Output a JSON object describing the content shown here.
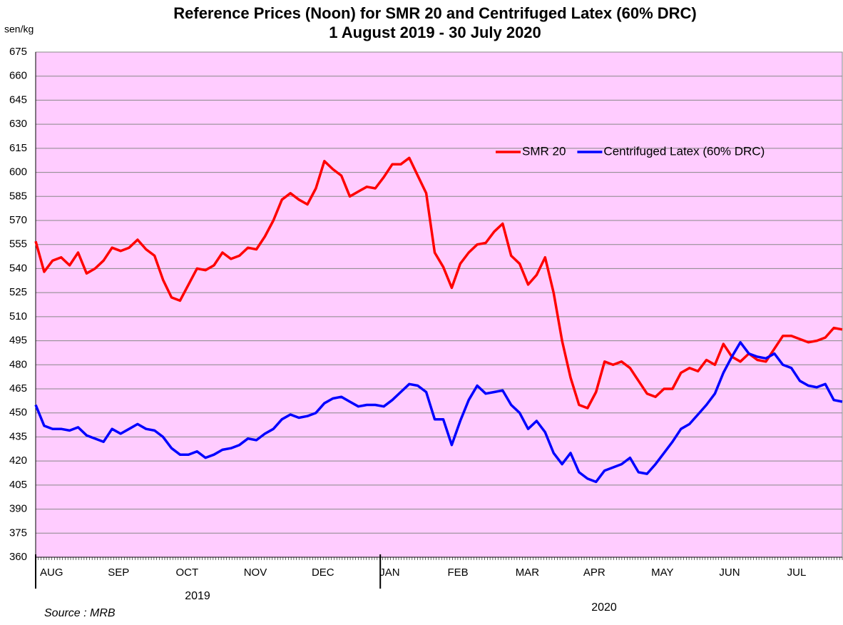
{
  "chart_data": {
    "type": "line",
    "title": "Reference Prices (Noon) for SMR 20 and Centrifuged Latex (60% DRC)",
    "subtitle": "1 August 2019 - 30 July 2020",
    "y_label": "sen/kg",
    "source": "Source : MRB",
    "year_labels": [
      "2019",
      "2020"
    ],
    "categories": [
      "AUG",
      null,
      null,
      null,
      null,
      null,
      null,
      null,
      "SEP",
      null,
      null,
      null,
      null,
      null,
      null,
      null,
      "OCT",
      null,
      null,
      null,
      null,
      null,
      null,
      null,
      "NOV",
      null,
      null,
      null,
      null,
      null,
      null,
      null,
      "DEC",
      null,
      null,
      null,
      null,
      null,
      null,
      null,
      "JAN",
      null,
      null,
      null,
      null,
      null,
      null,
      null,
      "FEB",
      null,
      null,
      null,
      null,
      null,
      null,
      null,
      "MAR",
      null,
      null,
      null,
      null,
      null,
      null,
      null,
      "APR",
      null,
      null,
      null,
      null,
      null,
      null,
      null,
      "MAY",
      null,
      null,
      null,
      null,
      null,
      null,
      null,
      "JUN",
      null,
      null,
      null,
      null,
      null,
      null,
      null,
      "JUL",
      null,
      null,
      null,
      null,
      null,
      null,
      null
    ],
    "series": [
      {
        "name": "SMR 20",
        "color": "#ff0000",
        "values": [
          557,
          538,
          545,
          547,
          542,
          550,
          537,
          540,
          545,
          553,
          551,
          553,
          558,
          552,
          548,
          533,
          522,
          520,
          530,
          540,
          539,
          542,
          550,
          546,
          548,
          553,
          552,
          560,
          570,
          583,
          587,
          583,
          580,
          590,
          607,
          602,
          598,
          585,
          588,
          591,
          590,
          597,
          605,
          605,
          609,
          598,
          587,
          550,
          541,
          528,
          543,
          550,
          555,
          556,
          563,
          568,
          548,
          543,
          530,
          536,
          547,
          525,
          495,
          472,
          455,
          453,
          463,
          482,
          480,
          482,
          478,
          470,
          462,
          460,
          465,
          465,
          475,
          478,
          476,
          483,
          480,
          493,
          485,
          482,
          487,
          483,
          482,
          490,
          498,
          498,
          496,
          494,
          495,
          497,
          503,
          502
        ]
      },
      {
        "name": "Centrifuged Latex (60% DRC)",
        "color": "#0000ff",
        "values": [
          455,
          442,
          440,
          440,
          439,
          441,
          436,
          434,
          432,
          440,
          437,
          440,
          443,
          440,
          439,
          435,
          428,
          424,
          424,
          426,
          422,
          424,
          427,
          428,
          430,
          434,
          433,
          437,
          440,
          446,
          449,
          447,
          448,
          450,
          456,
          459,
          460,
          457,
          454,
          455,
          455,
          454,
          458,
          463,
          468,
          467,
          463,
          446,
          446,
          430,
          445,
          458,
          467,
          462,
          463,
          464,
          455,
          450,
          440,
          445,
          438,
          425,
          418,
          425,
          413,
          409,
          407,
          414,
          416,
          418,
          422,
          413,
          412,
          418,
          425,
          432,
          440,
          443,
          449,
          455,
          462,
          475,
          485,
          494,
          487,
          485,
          484,
          487,
          480,
          478,
          470,
          467,
          466,
          468,
          458,
          457
        ]
      }
    ],
    "ylim": [
      360,
      675
    ],
    "yticks": [
      360,
      375,
      390,
      405,
      420,
      435,
      450,
      465,
      480,
      495,
      510,
      525,
      540,
      555,
      570,
      585,
      600,
      615,
      630,
      645,
      660,
      675
    ],
    "grid": true,
    "legend": "upper right",
    "background": "#ffccff"
  }
}
